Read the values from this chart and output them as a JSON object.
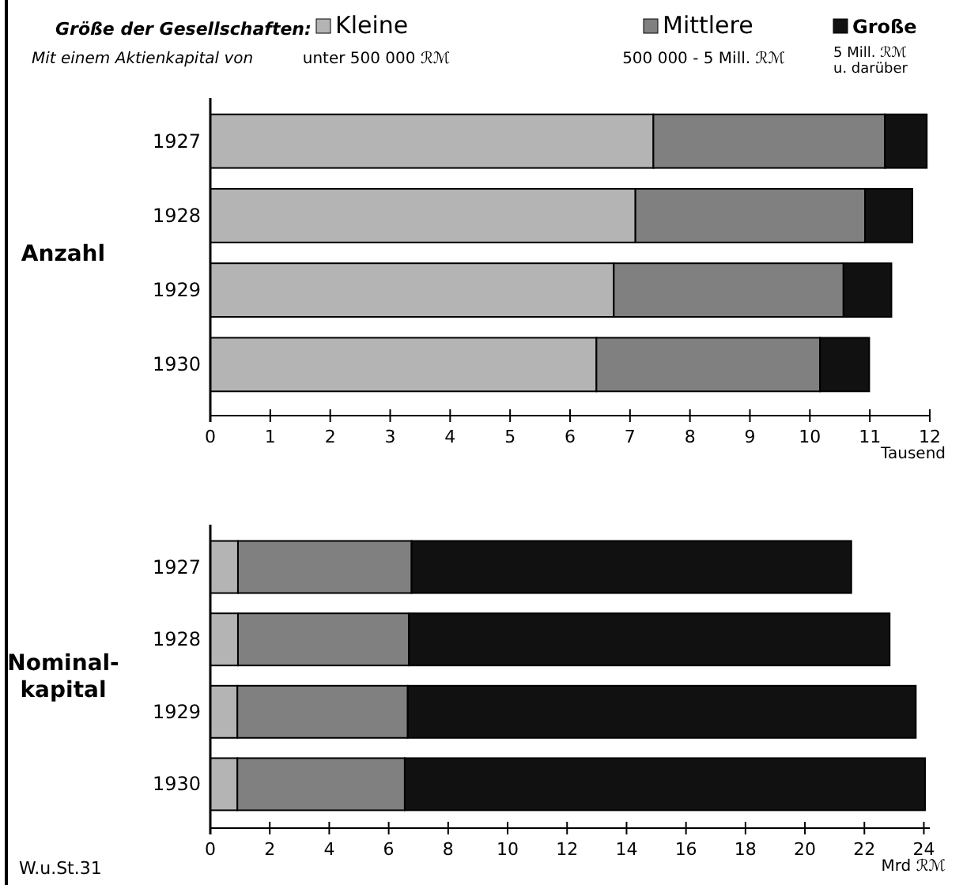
{
  "chart_data": [
    {
      "type": "bar",
      "orientation": "horizontal",
      "stacked": true,
      "legend": "top",
      "legend_title": "Größe der Gesellschaften:",
      "ylabel": "Anzahl",
      "xlabel": "Tausend",
      "categories": [
        "1927",
        "1928",
        "1929",
        "1930"
      ],
      "xlim": [
        0,
        12
      ],
      "xticks": [
        0,
        1,
        2,
        3,
        4,
        5,
        6,
        7,
        8,
        9,
        10,
        11,
        12
      ],
      "annotations": [
        "Mit einem Aktienkapital von",
        "unter 500 000 ℛℳ",
        "500 000 - 5 Mill. ℛℳ",
        "5 Mill. ℛℳ u. darüber"
      ],
      "series": [
        {
          "name": "Kleine",
          "color": "#b4b4b4",
          "values": [
            7.39,
            7.09,
            6.73,
            6.44
          ]
        },
        {
          "name": "Mittlere",
          "color": "#808080",
          "values": [
            3.86,
            3.83,
            3.83,
            3.73
          ]
        },
        {
          "name": "Große",
          "color": "#111111",
          "values": [
            0.7,
            0.79,
            0.8,
            0.82
          ]
        }
      ]
    },
    {
      "type": "bar",
      "orientation": "horizontal",
      "stacked": true,
      "ylabel": "Nominal-\nkapital",
      "xlabel": "Mrd ℛℳ",
      "categories": [
        "1927",
        "1928",
        "1929",
        "1930"
      ],
      "xlim": [
        0,
        24.2
      ],
      "xticks": [
        0,
        2,
        4,
        6,
        8,
        10,
        12,
        14,
        16,
        18,
        20,
        22,
        24
      ],
      "annotations": [
        "W.u.St.31"
      ],
      "series": [
        {
          "color": "#b4b4b4",
          "values": [
            0.93,
            0.93,
            0.91,
            0.91
          ]
        },
        {
          "color": "#808080",
          "values": [
            5.84,
            5.75,
            5.73,
            5.63
          ]
        },
        {
          "color": "#111111",
          "values": [
            14.79,
            16.17,
            17.09,
            17.5
          ]
        }
      ]
    }
  ]
}
